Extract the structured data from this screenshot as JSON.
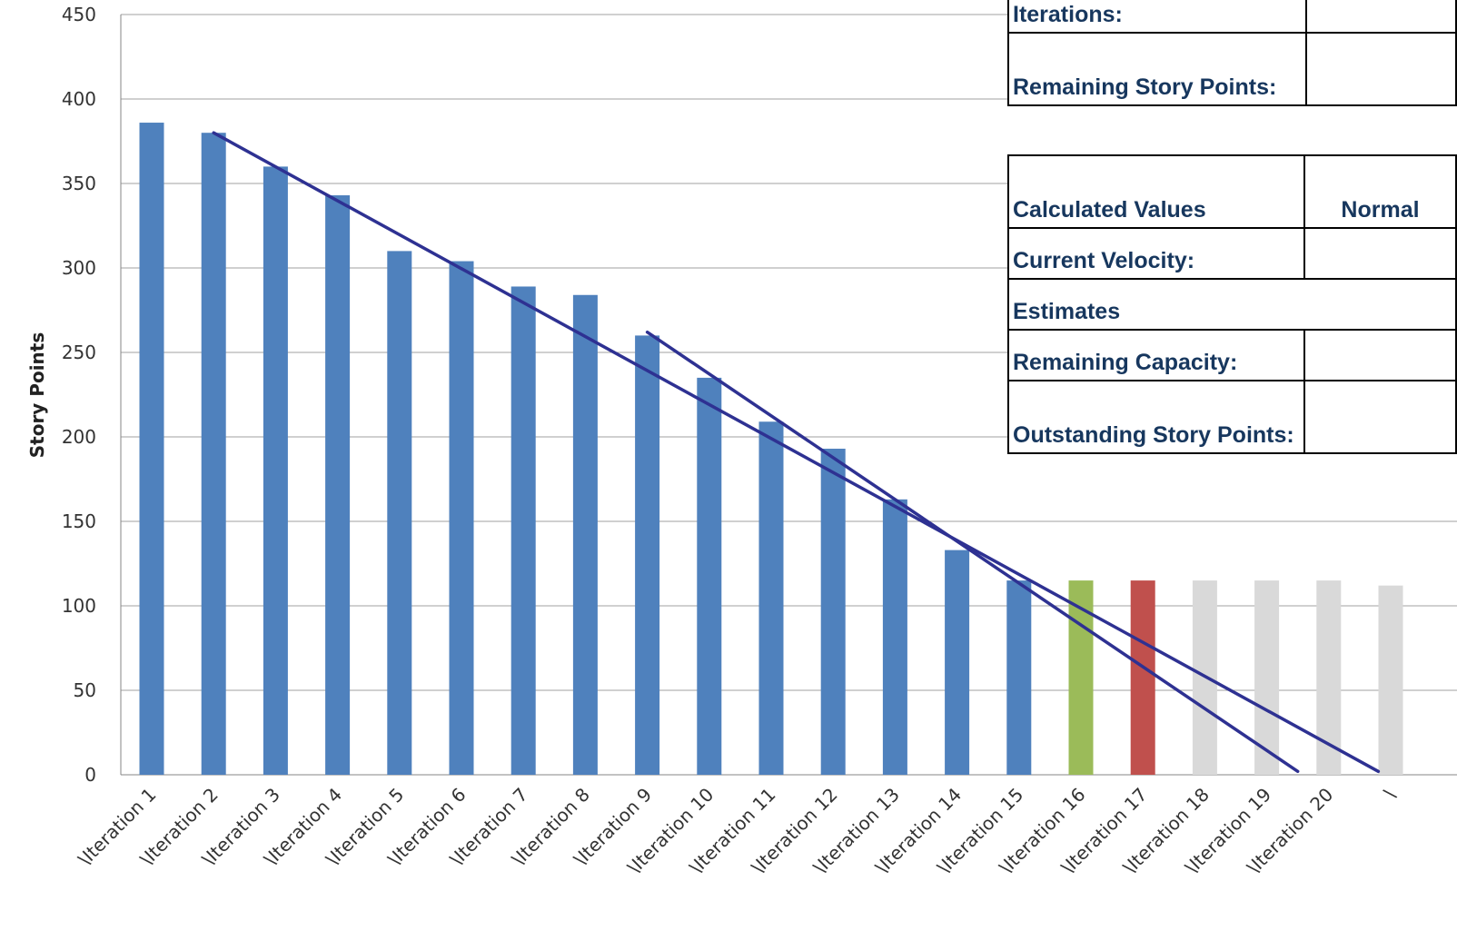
{
  "chart_data": {
    "type": "bar",
    "ylabel": "Story Points",
    "xlabel": "",
    "ylim": [
      0,
      450
    ],
    "yticks": [
      0,
      50,
      100,
      150,
      200,
      250,
      300,
      350,
      400,
      450
    ],
    "grid": true,
    "categories": [
      "\\Iteration 1",
      "\\Iteration 2",
      "\\Iteration 3",
      "\\Iteration 4",
      "\\Iteration 5",
      "\\Iteration 6",
      "\\Iteration 7",
      "\\Iteration 8",
      "\\Iteration 9",
      "\\Iteration 10",
      "\\Iteration 11",
      "\\Iteration 12",
      "\\Iteration 13",
      "\\Iteration 14",
      "\\Iteration 15",
      "\\Iteration 16",
      "\\Iteration 17",
      "\\Iteration 18",
      "\\Iteration 19",
      "\\Iteration 20",
      "\\"
    ],
    "values": [
      386,
      380,
      360,
      343,
      310,
      304,
      289,
      284,
      260,
      235,
      209,
      193,
      163,
      133,
      115,
      115,
      115,
      115,
      115,
      115,
      112
    ],
    "bar_colors": [
      "#4f81bd",
      "#4f81bd",
      "#4f81bd",
      "#4f81bd",
      "#4f81bd",
      "#4f81bd",
      "#4f81bd",
      "#4f81bd",
      "#4f81bd",
      "#4f81bd",
      "#4f81bd",
      "#4f81bd",
      "#4f81bd",
      "#4f81bd",
      "#4f81bd",
      "#9bbb59",
      "#c0504d",
      "#d9d9d9",
      "#d9d9d9",
      "#d9d9d9",
      "#d9d9d9"
    ],
    "trend_lines": [
      {
        "from": {
          "category_index": 1,
          "y": 380
        },
        "to": {
          "category_index": 19.8,
          "y": 2
        }
      },
      {
        "from": {
          "category_index": 8,
          "y": 262
        },
        "to": {
          "category_index": 18.5,
          "y": 2
        }
      }
    ],
    "trend_color": "#2e3192"
  },
  "tables": {
    "top": {
      "rows": [
        {
          "label": "Iterations:",
          "value": ""
        },
        {
          "label": "Remaining Story Points:",
          "value": ""
        }
      ]
    },
    "calc": {
      "header": {
        "label": "Calculated Values",
        "col2": "Normal"
      },
      "current_velocity": {
        "label": "Current Velocity:",
        "value": ""
      },
      "estimates": {
        "label": "Estimates"
      },
      "remaining_capacity": {
        "label": "Remaining Capacity:",
        "value": ""
      },
      "outstanding": {
        "label": "Outstanding Story Points:",
        "value": ""
      }
    }
  }
}
